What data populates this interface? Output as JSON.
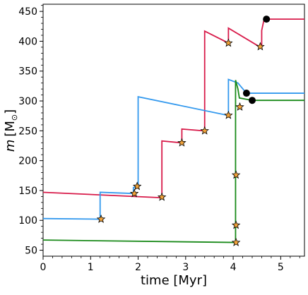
{
  "chart_data": {
    "type": "line",
    "title": "",
    "xlabel": "time [Myr]",
    "ylabel_main": "m",
    "ylabel_unit": "[M",
    "ylabel_sub": "⊙",
    "ylabel_close": "]",
    "xlim": [
      0,
      5.5
    ],
    "ylim": [
      40,
      462
    ],
    "xticks": [
      0,
      1,
      2,
      3,
      4,
      5
    ],
    "xtick_labels": [
      "0",
      "1",
      "2",
      "3",
      "4",
      "5"
    ],
    "yticks": [
      50,
      100,
      150,
      200,
      250,
      300,
      350,
      400,
      450
    ],
    "ytick_labels": [
      "50",
      "100",
      "150",
      "200",
      "250",
      "300",
      "350",
      "400",
      "450"
    ],
    "grid": false,
    "legend": "none",
    "series": [
      {
        "color": "#d81b4a",
        "points": [
          [
            0,
            147
          ],
          [
            2.48,
            138
          ],
          [
            2.5,
            138
          ],
          [
            2.5,
            233
          ],
          [
            2.9,
            230
          ],
          [
            2.92,
            230
          ],
          [
            2.92,
            253
          ],
          [
            3.38,
            250
          ],
          [
            3.4,
            250
          ],
          [
            3.4,
            417
          ],
          [
            3.9,
            397
          ],
          [
            3.9,
            422
          ],
          [
            4.55,
            391
          ],
          [
            4.6,
            391
          ],
          [
            4.6,
            418
          ],
          [
            4.65,
            437
          ],
          [
            5.5,
            437
          ]
        ],
        "markers": [
          [
            1.92,
            145
          ],
          [
            2.5,
            139
          ],
          [
            2.92,
            230
          ],
          [
            3.4,
            250
          ],
          [
            3.9,
            397
          ],
          [
            4.57,
            391
          ]
        ],
        "end_point": [
          4.7,
          437
        ]
      },
      {
        "color": "#3399ee",
        "points": [
          [
            0,
            103
          ],
          [
            1.2,
            102
          ],
          [
            1.2,
            147
          ],
          [
            1.9,
            145
          ],
          [
            1.9,
            155
          ],
          [
            2.0,
            157
          ],
          [
            2.0,
            307
          ],
          [
            3.88,
            276
          ],
          [
            3.9,
            276
          ],
          [
            3.9,
            336
          ],
          [
            4.1,
            330
          ],
          [
            4.28,
            313
          ],
          [
            5.5,
            313
          ]
        ],
        "markers": [
          [
            1.22,
            102
          ],
          [
            1.98,
            157
          ],
          [
            3.9,
            276
          ]
        ],
        "end_point": [
          4.28,
          313
        ]
      },
      {
        "color": "#1a8a1a",
        "points": [
          [
            0,
            67
          ],
          [
            4.05,
            63
          ],
          [
            4.05,
            335
          ],
          [
            4.1,
            320
          ],
          [
            4.13,
            305
          ],
          [
            4.4,
            301
          ],
          [
            5.5,
            301
          ]
        ],
        "markers": [
          [
            4.06,
            63
          ],
          [
            4.06,
            92
          ],
          [
            4.06,
            176
          ],
          [
            4.14,
            290
          ]
        ],
        "end_point": [
          4.4,
          301
        ]
      }
    ]
  }
}
